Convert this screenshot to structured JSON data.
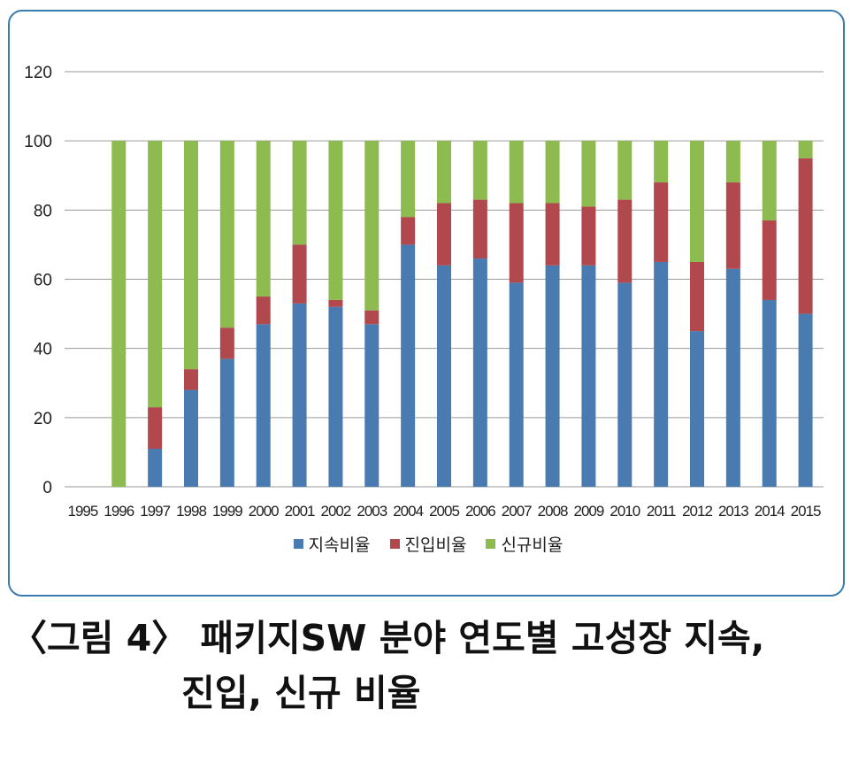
{
  "chart_data": {
    "type": "bar",
    "stacked": true,
    "categories": [
      "1995",
      "1996",
      "1997",
      "1998",
      "1999",
      "2000",
      "2001",
      "2002",
      "2003",
      "2004",
      "2005",
      "2006",
      "2007",
      "2008",
      "2009",
      "2010",
      "2011",
      "2012",
      "2013",
      "2014",
      "2015"
    ],
    "series": [
      {
        "name": "지속비율",
        "color": "#4a7bb0",
        "values": [
          0,
          0,
          11,
          28,
          37,
          47,
          53,
          52,
          47,
          70,
          64,
          66,
          59,
          64,
          64,
          59,
          65,
          45,
          63,
          54,
          50
        ]
      },
      {
        "name": "진입비율",
        "color": "#b0484e",
        "values": [
          0,
          0,
          12,
          6,
          9,
          8,
          17,
          2,
          4,
          8,
          18,
          17,
          23,
          18,
          17,
          24,
          23,
          20,
          25,
          23,
          45
        ]
      },
      {
        "name": "신규비율",
        "color": "#8dbb4f",
        "values": [
          0,
          100,
          77,
          66,
          54,
          45,
          30,
          46,
          49,
          22,
          18,
          17,
          18,
          18,
          19,
          17,
          12,
          35,
          12,
          23,
          5
        ]
      }
    ],
    "ylim": [
      0,
      120
    ],
    "yticks": [
      0,
      20,
      40,
      60,
      80,
      100,
      120
    ],
    "grid": true,
    "legend_position": "bottom"
  },
  "caption": {
    "line1": "〈그림 4〉 패키지SW 분야 연도별 고성장 지속,",
    "line2": "진입, 신규 비율"
  }
}
